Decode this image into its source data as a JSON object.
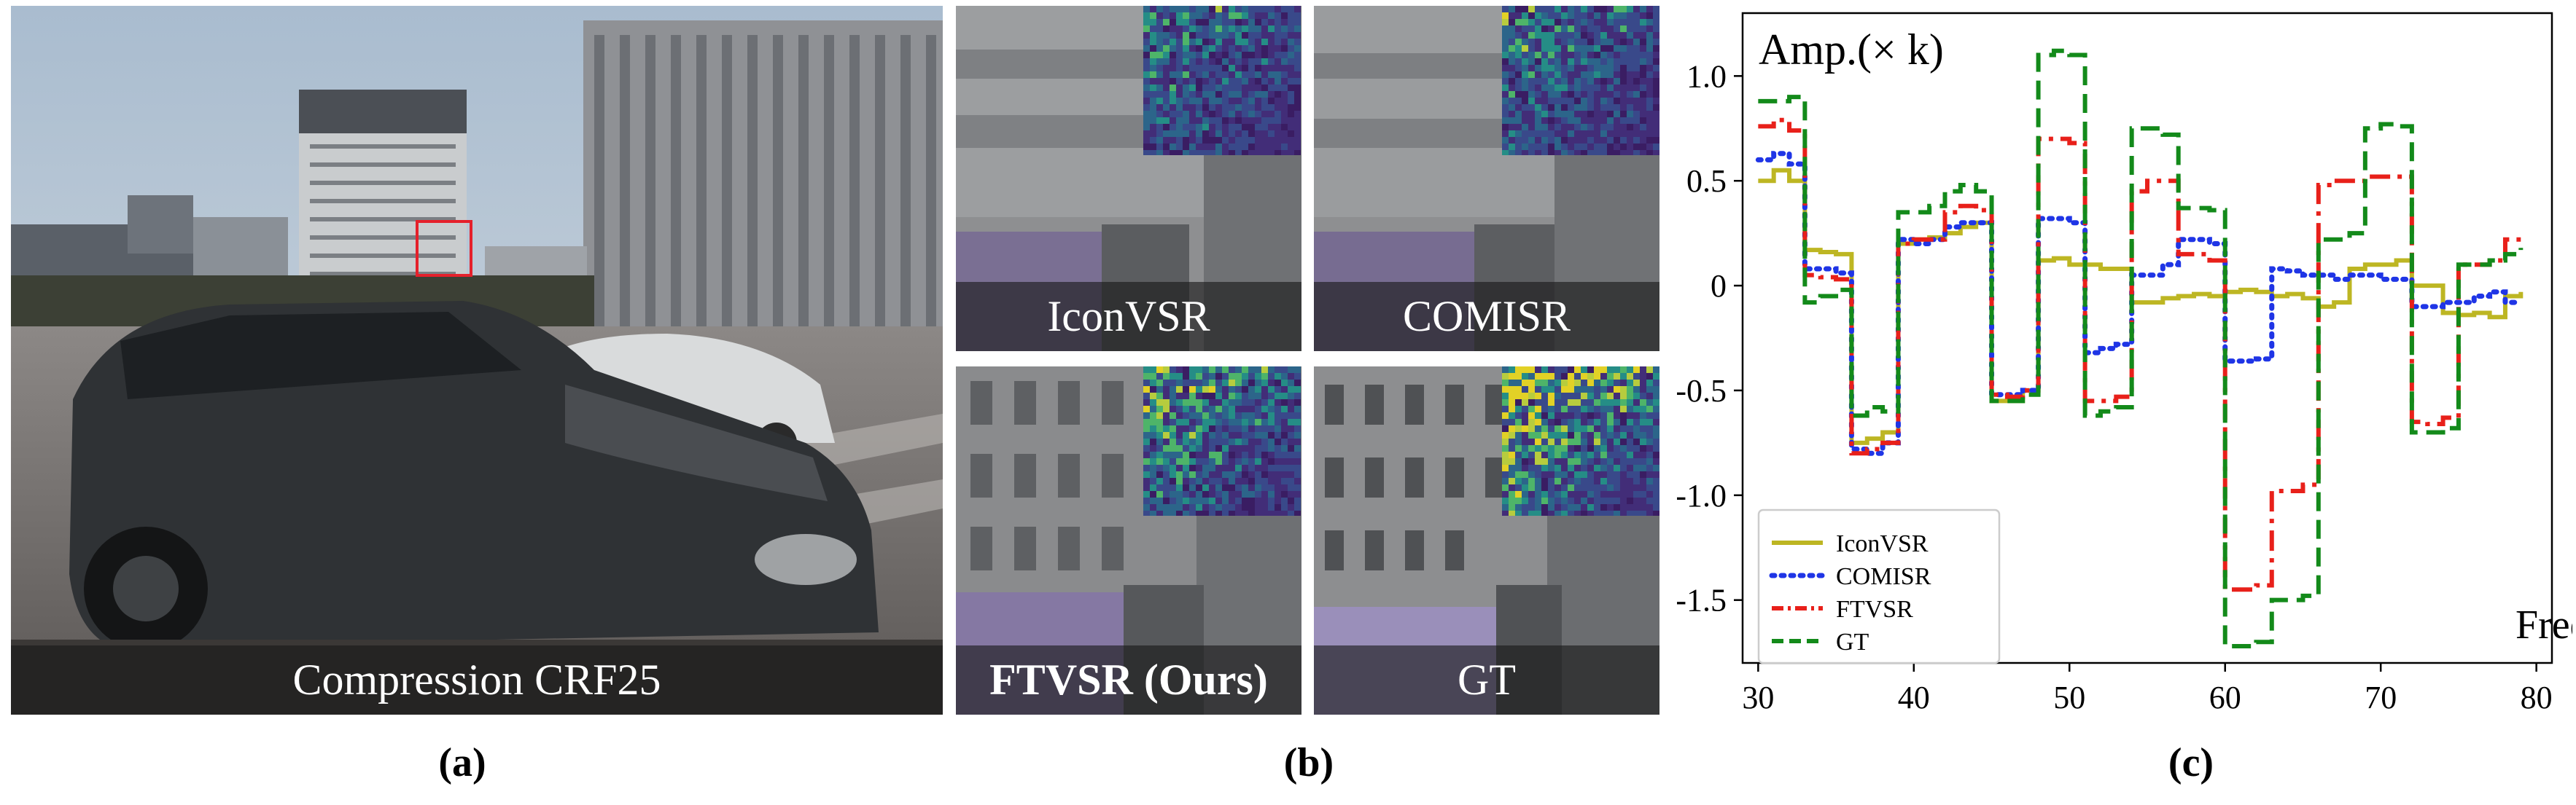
{
  "figure": {
    "panel_a": {
      "caption": "Compression CRF25",
      "label": "(a)"
    },
    "panel_b": {
      "label": "(b)",
      "tiles": [
        {
          "caption": "IconVSR",
          "bold": false
        },
        {
          "caption": "COMISR",
          "bold": false
        },
        {
          "caption": "FTVSR (Ours)",
          "bold": true
        },
        {
          "caption": "GT",
          "bold": false
        }
      ]
    },
    "panel_c": {
      "label": "(c)"
    }
  },
  "colors": {
    "IconVSR": "#bdb623",
    "COMISR": "#1f35e6",
    "FTVSR": "#e8201a",
    "GT": "#138a1a",
    "highlight_box": "#e5202b"
  },
  "chart_data": {
    "type": "line",
    "title": "",
    "ylabel": "Amp.(× k)",
    "xlabel": "Freq.",
    "xlim": [
      29,
      81
    ],
    "ylim": [
      -1.8,
      1.3
    ],
    "xticks": [
      "30",
      "40",
      "50",
      "60",
      "70",
      "80"
    ],
    "yticks": [
      "1.0",
      "0.5",
      "0",
      "-0.5",
      "-1.0",
      "-1.5"
    ],
    "legend_position": "lower-left",
    "series": [
      {
        "name": "IconVSR",
        "style": "solid",
        "x": [
          30,
          31,
          32,
          33,
          34,
          35,
          36,
          37,
          38,
          39,
          40,
          41,
          42,
          43,
          44,
          45,
          46,
          47,
          48,
          49,
          50,
          51,
          52,
          53,
          54,
          55,
          56,
          57,
          58,
          59,
          60,
          61,
          62,
          63,
          64,
          65,
          66,
          67,
          68,
          69,
          70,
          71,
          72,
          73,
          74,
          75,
          76,
          77,
          78,
          79
        ],
        "y": [
          0.5,
          0.55,
          0.5,
          0.17,
          0.16,
          0.15,
          -0.75,
          -0.73,
          -0.7,
          0.2,
          0.22,
          0.23,
          0.25,
          0.28,
          0.3,
          -0.55,
          -0.55,
          -0.5,
          0.12,
          0.13,
          0.1,
          0.1,
          0.08,
          0.08,
          -0.08,
          -0.08,
          -0.06,
          -0.05,
          -0.04,
          -0.05,
          -0.03,
          -0.02,
          -0.03,
          -0.05,
          -0.04,
          -0.06,
          -0.1,
          -0.08,
          0.08,
          0.1,
          0.1,
          0.12,
          0.0,
          0.0,
          -0.13,
          -0.14,
          -0.13,
          -0.15,
          -0.05,
          -0.03
        ]
      },
      {
        "name": "COMISR",
        "style": "dotted",
        "x": [
          30,
          31,
          32,
          33,
          34,
          35,
          36,
          37,
          38,
          39,
          40,
          41,
          42,
          43,
          44,
          45,
          46,
          47,
          48,
          49,
          50,
          51,
          52,
          53,
          54,
          55,
          56,
          57,
          58,
          59,
          60,
          61,
          62,
          63,
          64,
          65,
          66,
          67,
          68,
          69,
          70,
          71,
          72,
          73,
          74,
          75,
          76,
          77,
          78,
          79
        ],
        "y": [
          0.6,
          0.63,
          0.58,
          0.08,
          0.08,
          0.06,
          -0.78,
          -0.8,
          -0.75,
          0.22,
          0.2,
          0.22,
          0.28,
          0.3,
          0.3,
          -0.52,
          -0.52,
          -0.5,
          0.32,
          0.32,
          0.3,
          -0.32,
          -0.3,
          -0.28,
          0.05,
          0.05,
          0.1,
          0.22,
          0.22,
          0.2,
          -0.36,
          -0.36,
          -0.35,
          0.08,
          0.07,
          0.05,
          0.05,
          0.03,
          0.05,
          0.05,
          0.03,
          0.03,
          -0.1,
          -0.1,
          -0.08,
          -0.08,
          -0.05,
          -0.03,
          -0.08,
          -0.08
        ]
      },
      {
        "name": "FTVSR",
        "style": "dashdot",
        "x": [
          30,
          31,
          32,
          33,
          34,
          35,
          36,
          37,
          38,
          39,
          40,
          41,
          42,
          43,
          44,
          45,
          46,
          47,
          48,
          49,
          50,
          51,
          52,
          53,
          54,
          55,
          56,
          57,
          58,
          59,
          60,
          61,
          62,
          63,
          64,
          65,
          66,
          67,
          68,
          69,
          70,
          71,
          72,
          73,
          74,
          75,
          76,
          77,
          78,
          79
        ],
        "y": [
          0.76,
          0.79,
          0.74,
          0.05,
          0.04,
          0.03,
          -0.8,
          -0.78,
          -0.75,
          0.2,
          0.22,
          0.22,
          0.35,
          0.38,
          0.36,
          -0.52,
          -0.53,
          -0.5,
          0.7,
          0.7,
          0.68,
          -0.55,
          -0.55,
          -0.53,
          0.45,
          0.5,
          0.5,
          0.15,
          0.15,
          0.12,
          -1.45,
          -1.45,
          -1.43,
          -0.98,
          -0.98,
          -0.95,
          0.48,
          0.5,
          0.5,
          0.52,
          0.52,
          0.52,
          -0.65,
          -0.66,
          -0.63,
          0.1,
          0.1,
          0.12,
          0.22,
          0.22
        ]
      },
      {
        "name": "GT",
        "style": "dashed",
        "x": [
          30,
          31,
          32,
          33,
          34,
          35,
          36,
          37,
          38,
          39,
          40,
          41,
          42,
          43,
          44,
          45,
          46,
          47,
          48,
          49,
          50,
          51,
          52,
          53,
          54,
          55,
          56,
          57,
          58,
          59,
          60,
          61,
          62,
          63,
          64,
          65,
          66,
          67,
          68,
          69,
          70,
          71,
          72,
          73,
          74,
          75,
          76,
          77,
          78,
          79
        ],
        "y": [
          0.88,
          0.88,
          0.9,
          -0.08,
          -0.05,
          -0.02,
          -0.62,
          -0.58,
          -0.6,
          0.35,
          0.35,
          0.38,
          0.45,
          0.48,
          0.45,
          -0.55,
          -0.55,
          -0.52,
          1.1,
          1.12,
          1.1,
          -0.62,
          -0.6,
          -0.58,
          0.75,
          0.75,
          0.72,
          0.37,
          0.37,
          0.36,
          -1.72,
          -1.72,
          -1.7,
          -1.5,
          -1.5,
          -1.48,
          0.22,
          0.22,
          0.25,
          0.75,
          0.77,
          0.76,
          -0.7,
          -0.7,
          -0.68,
          0.1,
          0.1,
          0.12,
          0.15,
          0.18
        ]
      }
    ]
  }
}
